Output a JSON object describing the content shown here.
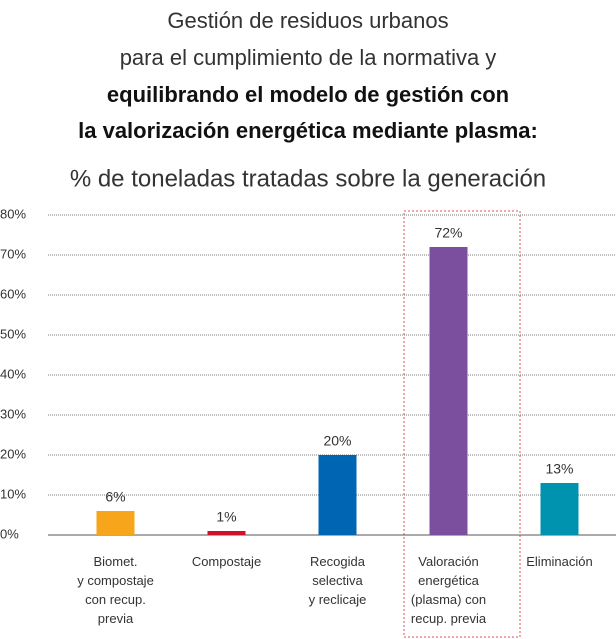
{
  "chart_data": {
    "type": "bar",
    "title": [
      "Gestión de residuos urbanos",
      "para el cumplimiento de la normativa y"
    ],
    "title_bold": [
      "equilibrando el modelo de gestión con",
      "la valorización energética mediante plasma:"
    ],
    "subtitle": "% de toneladas tratadas sobre la generación",
    "categories": [
      [
        "Biomet.",
        "y compostaje",
        "con recup.",
        "previa"
      ],
      [
        "Compostaje"
      ],
      [
        "Recogida",
        "selectiva",
        "y reclicaje"
      ],
      [
        "Valoración",
        "energética",
        "(plasma) con",
        "recup. previa"
      ],
      [
        "Eliminación"
      ]
    ],
    "values": [
      6,
      1,
      20,
      72,
      13
    ],
    "value_labels": [
      "6%",
      "1%",
      "20%",
      "72%",
      "13%"
    ],
    "colors": [
      "#f7a51b",
      "#d0112b",
      "#0066b3",
      "#7b4f9e",
      "#0093b0"
    ],
    "ylim": [
      0,
      80
    ],
    "yticks": [
      {
        "value": 0,
        "label": "0%"
      },
      {
        "value": 10,
        "label": "10%"
      },
      {
        "value": 20,
        "label": "20%"
      },
      {
        "value": 30,
        "label": "30%"
      },
      {
        "value": 40,
        "label": "40%"
      },
      {
        "value": 50,
        "label": "50%"
      },
      {
        "value": 60,
        "label": "60%"
      },
      {
        "value": 70,
        "label": "70%"
      },
      {
        "value": 80,
        "label": "80%"
      }
    ],
    "grid": true
  }
}
